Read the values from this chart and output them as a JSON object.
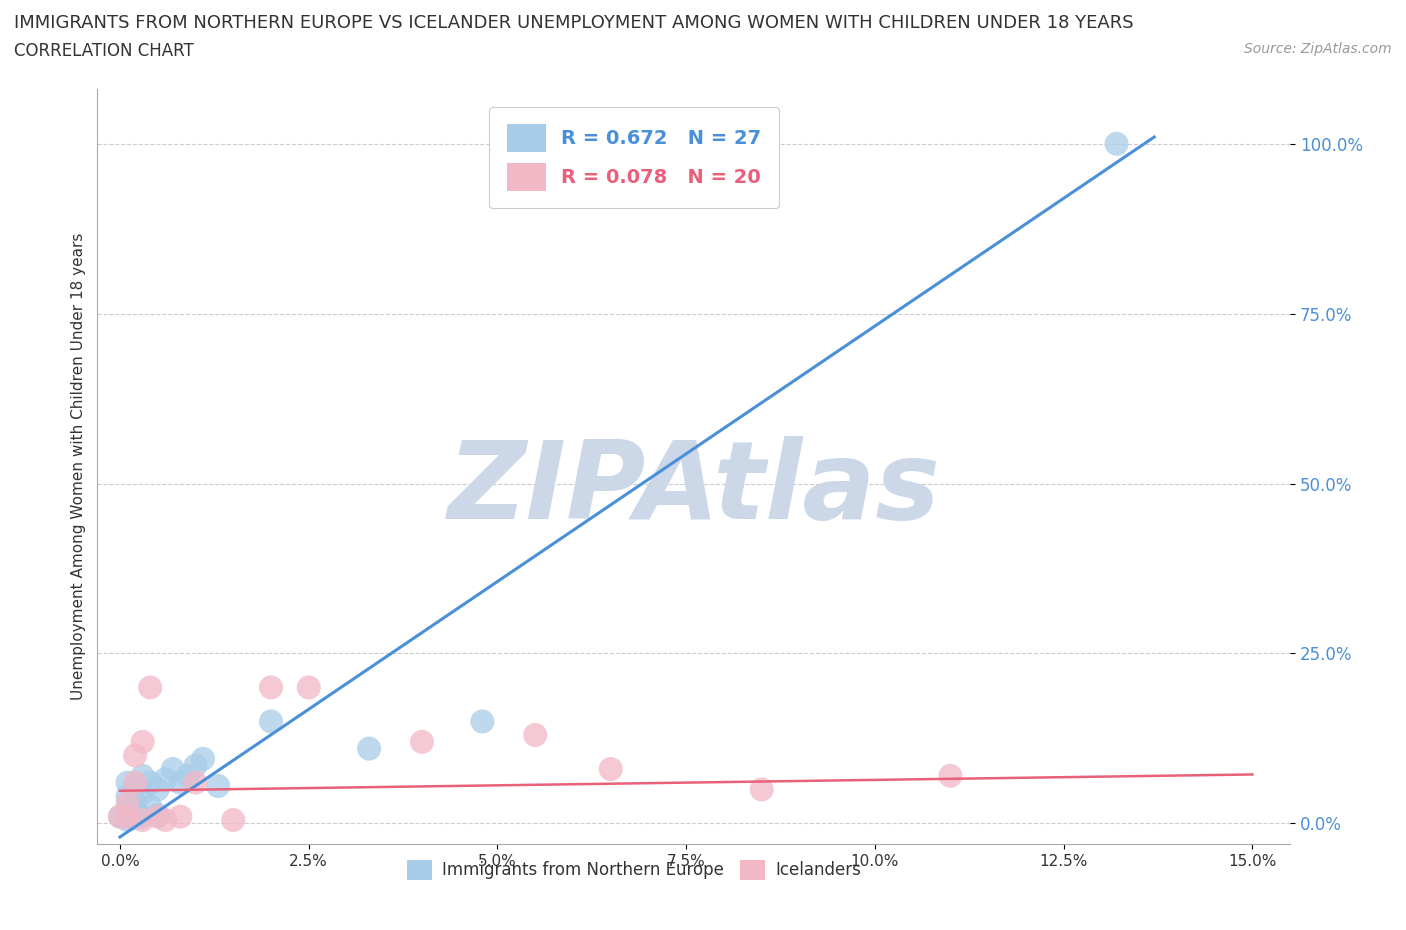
{
  "title": "IMMIGRANTS FROM NORTHERN EUROPE VS ICELANDER UNEMPLOYMENT AMONG WOMEN WITH CHILDREN UNDER 18 YEARS",
  "subtitle": "CORRELATION CHART",
  "source": "Source: ZipAtlas.com",
  "ylabel": "Unemployment Among Women with Children Under 18 years",
  "xlabel_ticks": [
    "0.0%",
    "2.5%",
    "5.0%",
    "7.5%",
    "10.0%",
    "12.5%",
    "15.0%"
  ],
  "xlabel_vals": [
    0.0,
    2.5,
    5.0,
    7.5,
    10.0,
    12.5,
    15.0
  ],
  "ylim_min": -0.03,
  "ylim_max": 1.08,
  "xlim_min": -0.003,
  "xlim_max": 0.155,
  "ytick_vals": [
    0.0,
    0.25,
    0.5,
    0.75,
    1.0
  ],
  "ytick_labels": [
    "0.0%",
    "25.0%",
    "50.0%",
    "75.0%",
    "100.0%"
  ],
  "blue_R": 0.672,
  "blue_N": 27,
  "pink_R": 0.078,
  "pink_N": 20,
  "blue_color": "#a8cce8",
  "pink_color": "#f2b8c6",
  "blue_line_color": "#4a90d9",
  "pink_line_color": "#e8607a",
  "watermark": "ZIPAtlas",
  "watermark_color": "#ccd8e8",
  "background_color": "#ffffff",
  "legend_label_blue": "Immigrants from Northern Europe",
  "legend_label_pink": "Icelanders",
  "blue_x": [
    0.0,
    0.001,
    0.001,
    0.001,
    0.001,
    0.002,
    0.002,
    0.002,
    0.002,
    0.003,
    0.003,
    0.003,
    0.004,
    0.004,
    0.005,
    0.005,
    0.006,
    0.007,
    0.008,
    0.009,
    0.01,
    0.011,
    0.013,
    0.02,
    0.033,
    0.048,
    0.132
  ],
  "blue_y": [
    0.01,
    0.005,
    0.02,
    0.04,
    0.06,
    0.008,
    0.015,
    0.03,
    0.055,
    0.01,
    0.045,
    0.07,
    0.025,
    0.06,
    0.012,
    0.05,
    0.065,
    0.08,
    0.06,
    0.07,
    0.085,
    0.095,
    0.055,
    0.15,
    0.11,
    0.15,
    1.0
  ],
  "pink_x": [
    0.0,
    0.001,
    0.001,
    0.002,
    0.002,
    0.003,
    0.003,
    0.004,
    0.005,
    0.006,
    0.008,
    0.01,
    0.015,
    0.02,
    0.025,
    0.04,
    0.055,
    0.065,
    0.085,
    0.11
  ],
  "pink_y": [
    0.01,
    0.01,
    0.03,
    0.06,
    0.1,
    0.005,
    0.12,
    0.2,
    0.01,
    0.005,
    0.01,
    0.06,
    0.005,
    0.2,
    0.2,
    0.12,
    0.13,
    0.08,
    0.05,
    0.07
  ],
  "blue_line_x": [
    0.0,
    0.137
  ],
  "blue_line_y": [
    -0.02,
    1.01
  ],
  "pink_line_x": [
    0.0,
    0.15
  ],
  "pink_line_y": [
    0.048,
    0.072
  ]
}
